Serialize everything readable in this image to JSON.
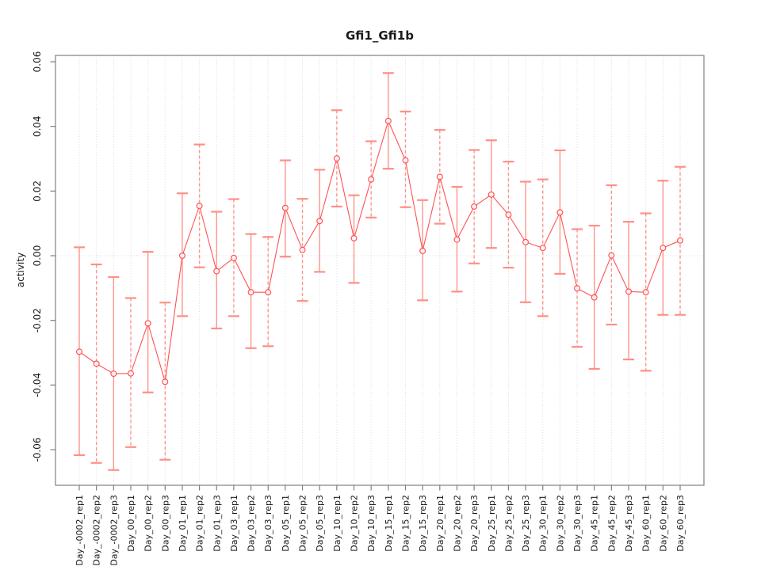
{
  "figure": {
    "title": "Gfi1_Gfi1b",
    "ylabel": "activity"
  },
  "chart_data": {
    "type": "line",
    "title": "Gfi1_Gfi1b",
    "xlabel": "",
    "ylabel": "activity",
    "ylim": [
      -0.071,
      0.062
    ],
    "yticks": [
      -0.06,
      -0.04,
      -0.02,
      0.0,
      0.02,
      0.04,
      0.06
    ],
    "ytick_labels": [
      "-0.06",
      "-0.04",
      "-0.02",
      "0.00",
      "0.02",
      "0.04",
      "0.06"
    ],
    "grid": "vertical dotted gridline at every category; dotted horizontal line at y=0",
    "legend_position": "none",
    "marker": "open-circle",
    "error_bars": true,
    "colors": {
      "series": "#ff5252",
      "error_bar": "#ff8a80",
      "grid": "#d9d9d9",
      "axis": "#808080",
      "text": "#1a1a1a",
      "background": "#ffffff"
    },
    "categories": [
      "Day_-0002_rep1",
      "Day_-0002_rep2",
      "Day_-0002_rep3",
      "Day_00_rep1",
      "Day_00_rep2",
      "Day_00_rep3",
      "Day_01_rep1",
      "Day_01_rep2",
      "Day_01_rep3",
      "Day_03_rep1",
      "Day_03_rep2",
      "Day_03_rep3",
      "Day_05_rep1",
      "Day_05_rep2",
      "Day_05_rep3",
      "Day_10_rep1",
      "Day_10_rep2",
      "Day_10_rep3",
      "Day_15_rep1",
      "Day_15_rep2",
      "Day_15_rep3",
      "Day_20_rep1",
      "Day_20_rep2",
      "Day_20_rep3",
      "Day_25_rep1",
      "Day_25_rep2",
      "Day_25_rep3",
      "Day_30_rep1",
      "Day_30_rep2",
      "Day_30_rep3",
      "Day_45_rep1",
      "Day_45_rep2",
      "Day_45_rep3",
      "Day_60_rep1",
      "Day_60_rep2",
      "Day_60_rep3"
    ],
    "series": [
      {
        "name": "activity",
        "values": [
          -0.0297,
          -0.0334,
          -0.0365,
          -0.0364,
          -0.0209,
          -0.039,
          0.0,
          0.0154,
          -0.0048,
          -0.0007,
          -0.0113,
          -0.0113,
          0.0148,
          0.0018,
          0.0107,
          0.0301,
          0.0054,
          0.0236,
          0.0417,
          0.0295,
          0.0015,
          0.0244,
          0.005,
          0.0152,
          0.0189,
          0.0127,
          0.0042,
          0.0024,
          0.0134,
          -0.0101,
          -0.0129,
          0.0001,
          -0.0111,
          -0.0113,
          0.0024,
          0.0047
        ]
      }
    ],
    "error_low": [
      -0.0617,
      -0.0641,
      -0.0663,
      -0.0592,
      -0.0423,
      -0.0631,
      -0.0187,
      -0.0036,
      -0.0225,
      -0.0187,
      -0.0286,
      -0.028,
      -0.0003,
      -0.014,
      -0.005,
      0.0152,
      -0.0084,
      0.0118,
      0.0269,
      0.015,
      -0.0138,
      0.0099,
      -0.0111,
      -0.0024,
      0.0024,
      -0.0037,
      -0.0144,
      -0.0187,
      -0.0056,
      -0.0282,
      -0.035,
      -0.0213,
      -0.0321,
      -0.0356,
      -0.0183,
      -0.0183
    ],
    "error_high": [
      0.0026,
      -0.0027,
      -0.0066,
      -0.0131,
      0.0012,
      -0.0145,
      0.0193,
      0.0344,
      0.0136,
      0.0175,
      0.0067,
      0.0058,
      0.0295,
      0.0176,
      0.0266,
      0.045,
      0.0187,
      0.0354,
      0.0565,
      0.0446,
      0.0172,
      0.0389,
      0.0213,
      0.0327,
      0.0357,
      0.0291,
      0.0229,
      0.0236,
      0.0326,
      0.0082,
      0.0093,
      0.0218,
      0.0105,
      0.0131,
      0.0232,
      0.0275
    ]
  }
}
